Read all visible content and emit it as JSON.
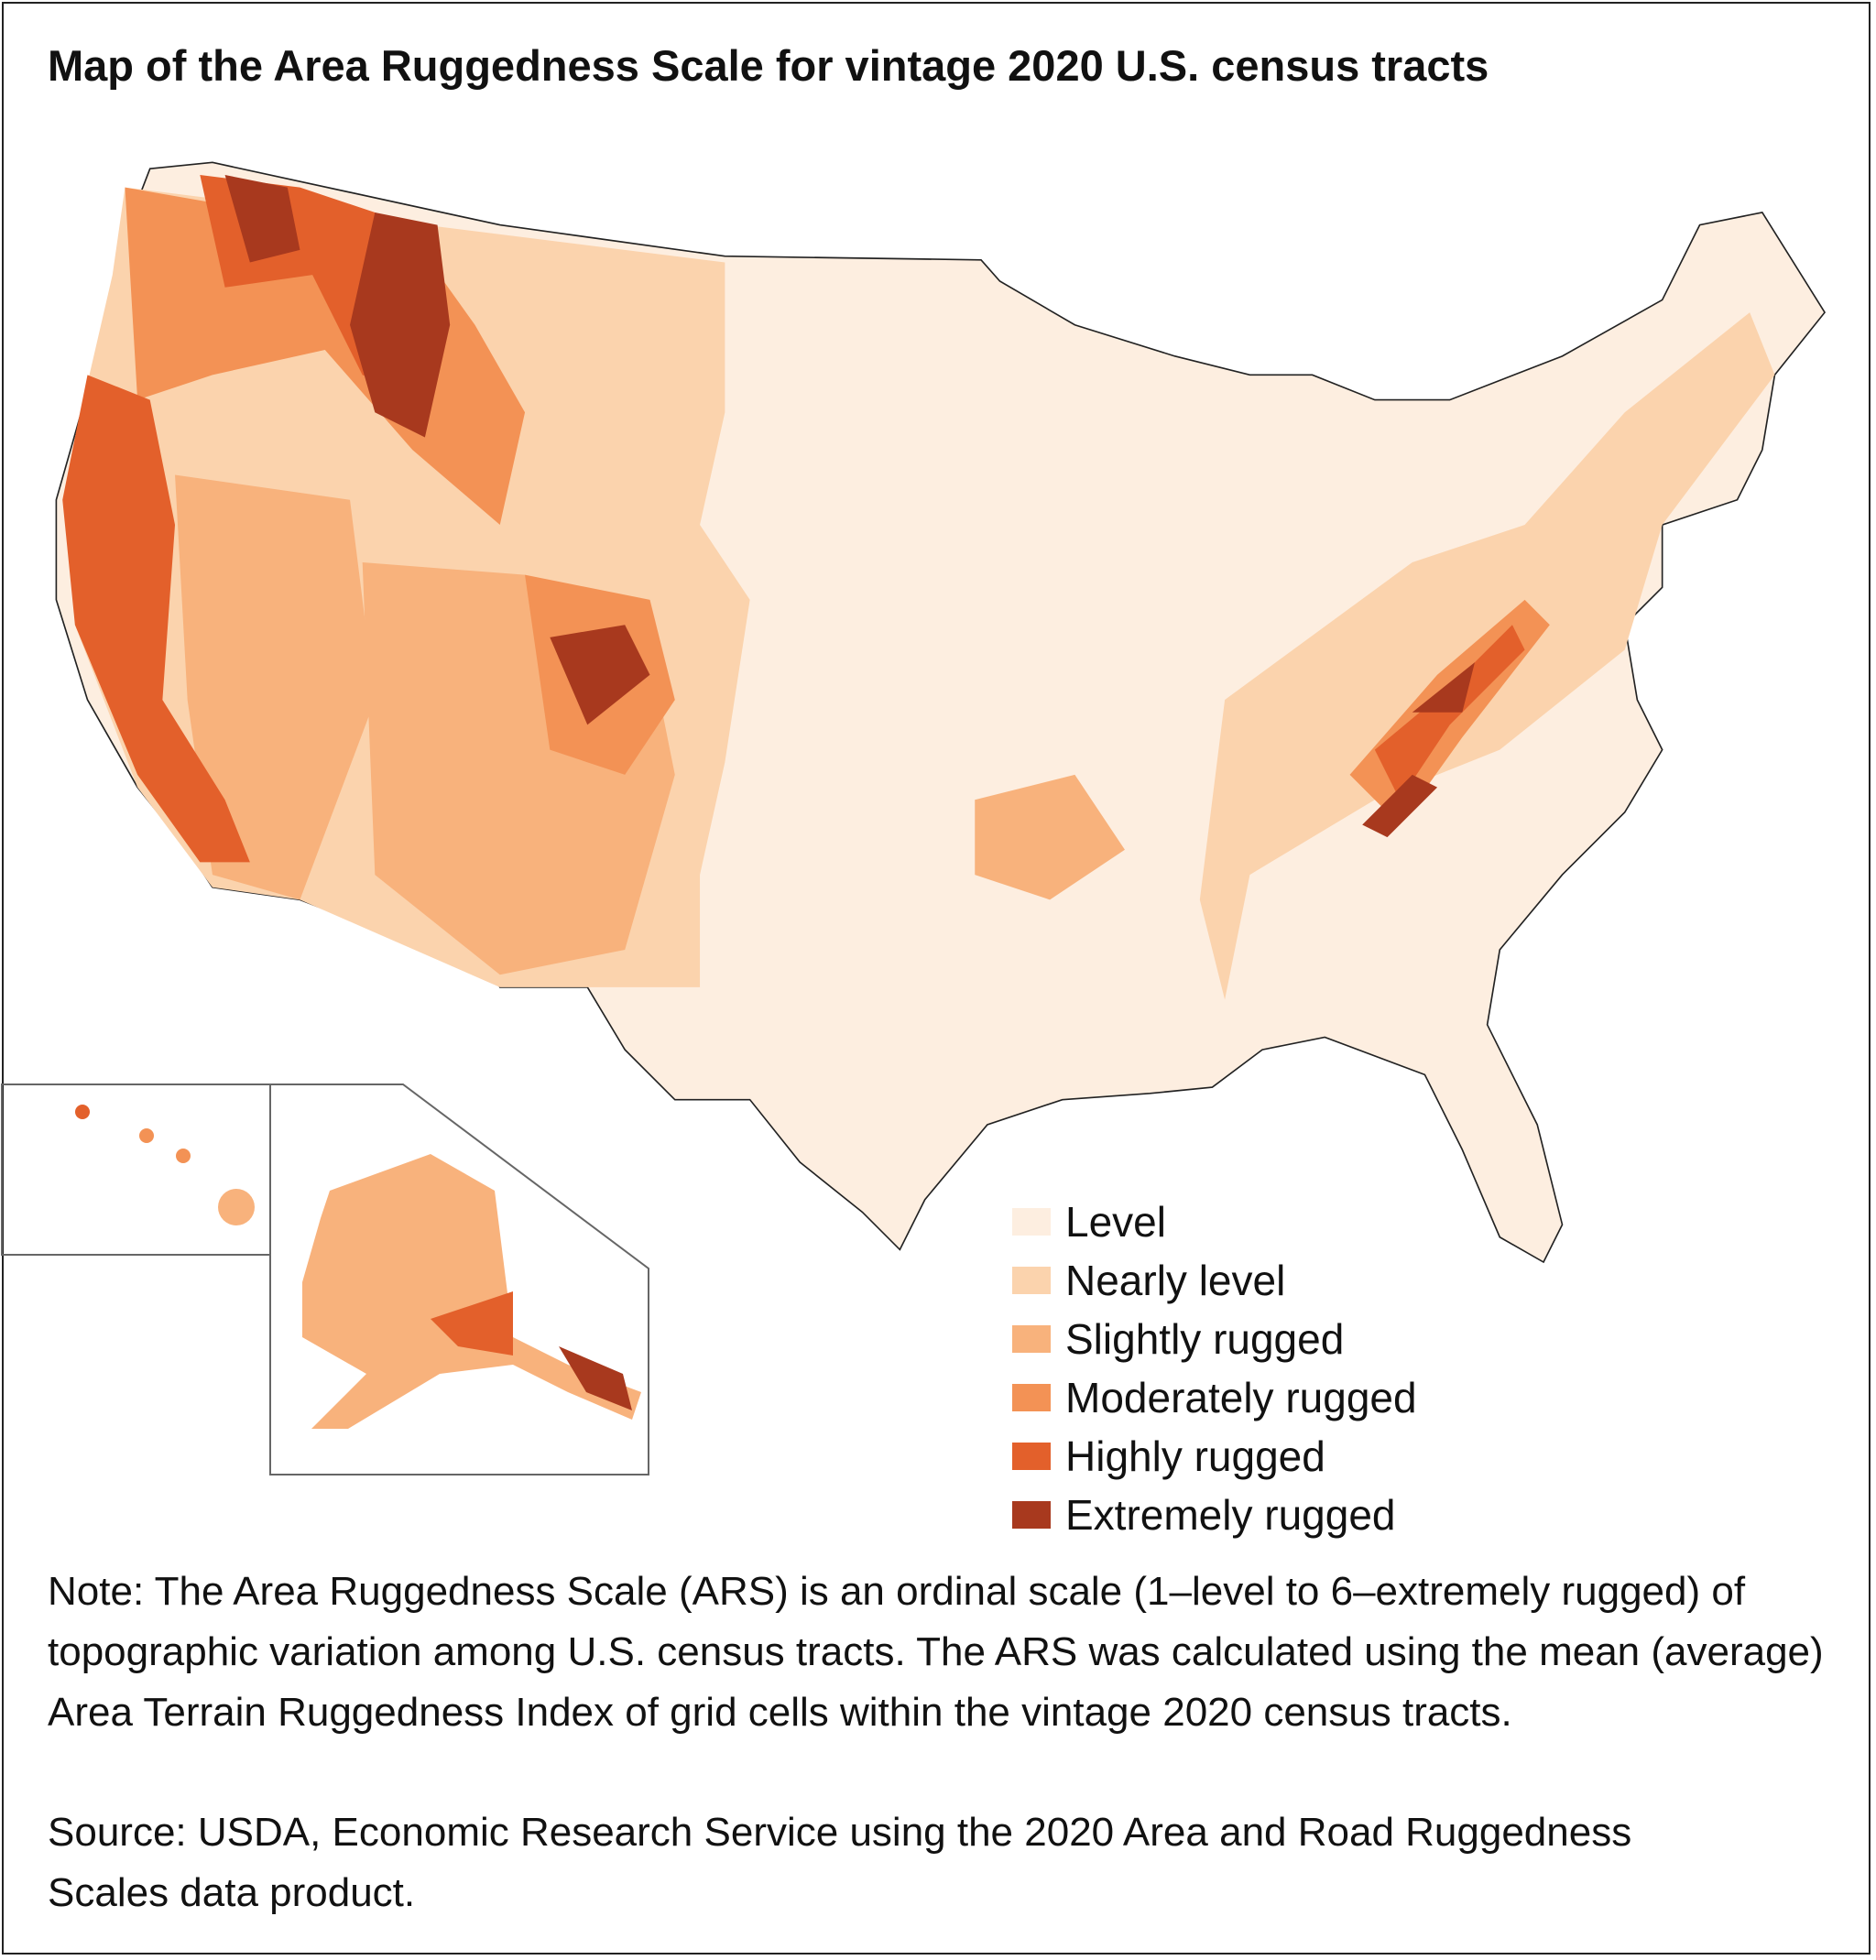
{
  "title": "Map of the Area Ruggedness Scale for vintage 2020 U.S. census tracts",
  "legend": [
    {
      "name": "Level",
      "color": "#fdeee0"
    },
    {
      "name": "Nearly level",
      "color": "#fbd3ad"
    },
    {
      "name": "Slightly rugged",
      "color": "#f8b27c"
    },
    {
      "name": "Moderately rugged",
      "color": "#f39255"
    },
    {
      "name": "Highly rugged",
      "color": "#e3602b"
    },
    {
      "name": "Extremely rugged",
      "color": "#a8391e"
    }
  ],
  "note": "Note: The Area Ruggedness Scale (ARS) is an ordinal scale (1–level to 6–extremely rugged) of topographic variation among U.S. census tracts. The ARS was calculated using the mean (average) Area Terrain Ruggedness Index of grid cells within the vintage 2020 census tracts.",
  "source": "Source: USDA, Economic Research Service using the 2020 Area and Road Ruggedness Scales data product."
}
